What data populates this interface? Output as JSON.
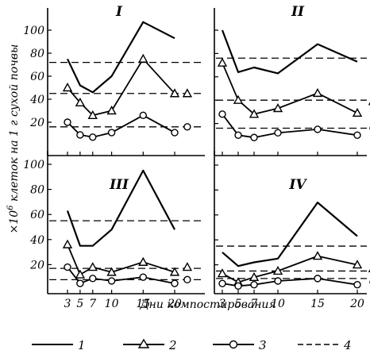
{
  "chart_data": {
    "type": "line",
    "xlabel": "Дни компостирования",
    "ylabel": "×10⁶ клеток на 1 г сухой почвы",
    "y_prefix": "×10",
    "y_exponent": "6",
    "y_rest": " клеток на 1 г сухой почвы",
    "x_ticks": [
      "3",
      "5",
      "7",
      "10",
      "15",
      "20"
    ],
    "xlim": [
      2,
      22
    ],
    "ylim": [
      0,
      110
    ],
    "legend": [
      {
        "key": "1",
        "label": "1",
        "style": "solid"
      },
      {
        "key": "2",
        "label": "2",
        "style": "triangle"
      },
      {
        "key": "3",
        "label": "3",
        "style": "circle"
      },
      {
        "key": "4",
        "label": "4",
        "style": "dashed"
      }
    ],
    "panels": [
      {
        "title": "I",
        "y_ticks": [
          "20",
          "40",
          "60",
          "80",
          "100"
        ],
        "series": [
          {
            "key": "1",
            "x": [
              3,
              5,
              7,
              10,
              15,
              20
            ],
            "y": [
              75,
              52,
              46,
              60,
              107,
              93
            ]
          },
          {
            "key": "2",
            "x": [
              3,
              5,
              7,
              10,
              15,
              20,
              22
            ],
            "y": [
              50,
              37,
              26,
              30,
              75,
              45,
              45
            ]
          },
          {
            "key": "3",
            "x": [
              3,
              5,
              7,
              10,
              15,
              20,
              22
            ],
            "y": [
              20,
              9,
              7,
              11,
              26,
              11,
              16
            ]
          }
        ],
        "dashed": [
          72,
          45,
          16
        ]
      },
      {
        "title": "II",
        "y_ticks": [],
        "series": [
          {
            "key": "1",
            "x": [
              3,
              5,
              7,
              10,
              15,
              20
            ],
            "y": [
              100,
              64,
              68,
              63,
              88,
              73
            ]
          },
          {
            "key": "2",
            "x": [
              3,
              5,
              7,
              10,
              15,
              20,
              22
            ],
            "y": [
              72,
              40,
              28,
              33,
              46,
              29,
              39
            ]
          },
          {
            "key": "3",
            "x": [
              3,
              5,
              7,
              10,
              15,
              20,
              22
            ],
            "y": [
              28,
              10,
              8,
              12,
              15,
              10,
              16
            ]
          }
        ],
        "dashed": [
          76,
          40,
          16
        ]
      },
      {
        "title": "III",
        "y_ticks": [
          "20",
          "40",
          "60",
          "80",
          "100"
        ],
        "series": [
          {
            "key": "1",
            "x": [
              3,
              5,
              7,
              10,
              15,
              20
            ],
            "y": [
              63,
              35,
              35,
              48,
              95,
              48
            ]
          },
          {
            "key": "2",
            "x": [
              3,
              5,
              7,
              10,
              15,
              20,
              22
            ],
            "y": [
              36,
              12,
              18,
              14,
              22,
              14,
              18
            ]
          },
          {
            "key": "3",
            "x": [
              3,
              5,
              7,
              10,
              15,
              20,
              22
            ],
            "y": [
              18,
              5,
              9,
              7,
              10,
              5,
              8
            ]
          }
        ],
        "dashed": [
          55,
          17,
          8
        ]
      },
      {
        "title": "IV",
        "y_ticks": [],
        "series": [
          {
            "key": "1",
            "x": [
              3,
              5,
              7,
              10,
              15,
              20
            ],
            "y": [
              30,
              19,
              22,
              25,
              70,
              43
            ]
          },
          {
            "key": "2",
            "x": [
              3,
              5,
              7,
              10,
              15,
              20,
              22
            ],
            "y": [
              13,
              6,
              10,
              15,
              27,
              20,
              17
            ]
          },
          {
            "key": "3",
            "x": [
              3,
              5,
              7,
              10,
              15,
              20,
              22
            ],
            "y": [
              5,
              3,
              4,
              7,
              9,
              4,
              6
            ]
          }
        ],
        "dashed": [
          35,
          15,
          9
        ]
      }
    ]
  }
}
